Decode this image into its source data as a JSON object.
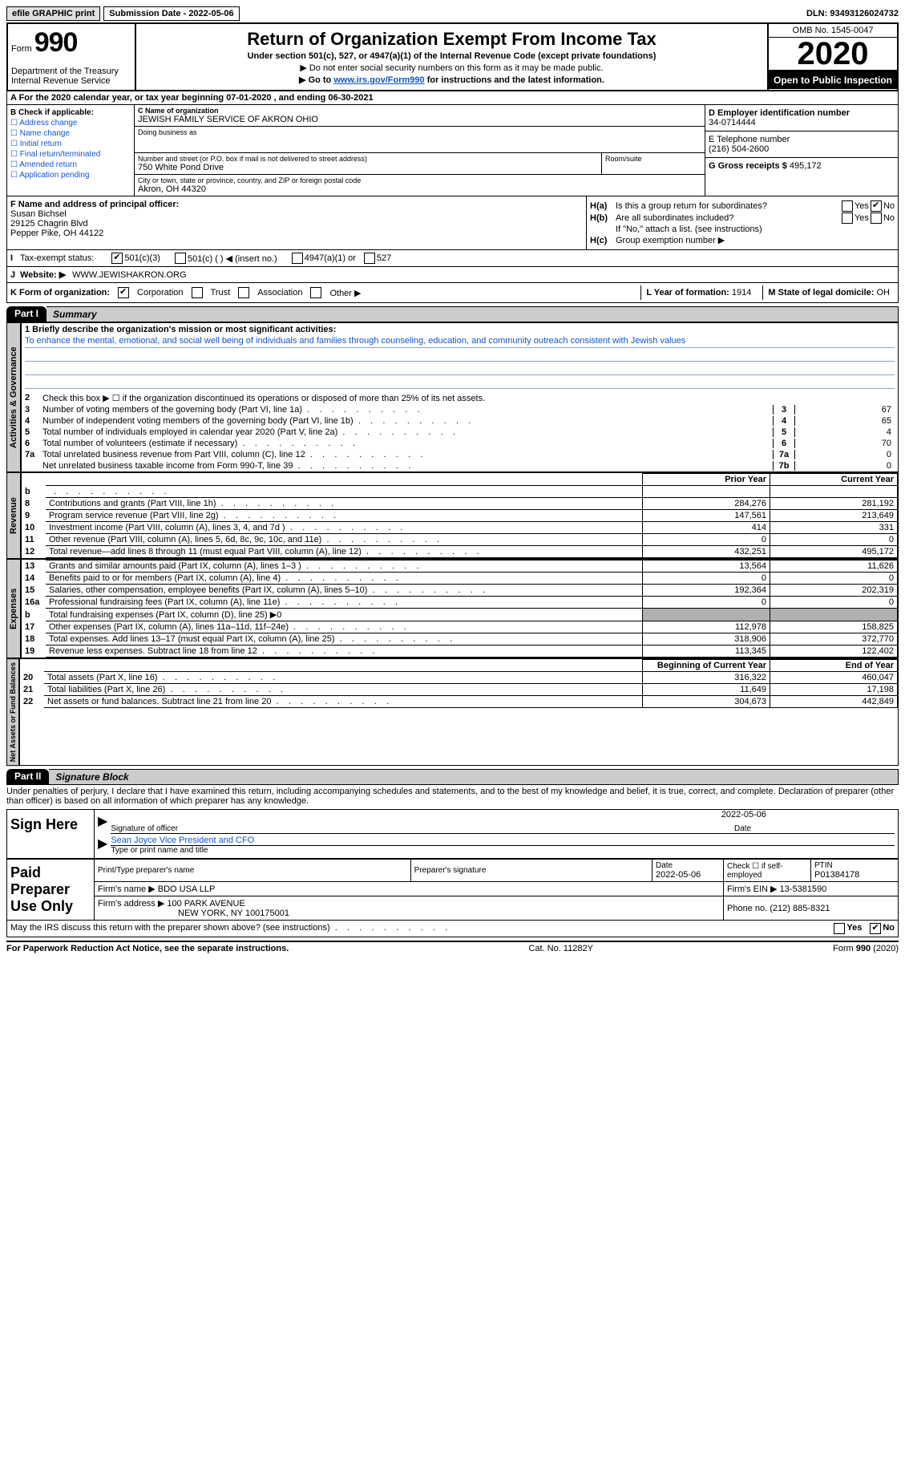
{
  "topbar": {
    "efile": "efile GRAPHIC print",
    "submission": "Submission Date - 2022-05-06",
    "dln": "DLN: 93493126024732"
  },
  "header": {
    "form_word": "Form",
    "form_num": "990",
    "dept": "Department of the Treasury\nInternal Revenue Service",
    "title": "Return of Organization Exempt From Income Tax",
    "sub1": "Under section 501(c), 527, or 4947(a)(1) of the Internal Revenue Code (except private foundations)",
    "instr1": "▶ Do not enter social security numbers on this form as it may be made public.",
    "instr2_pre": "▶ Go to ",
    "instr2_link": "www.irs.gov/Form990",
    "instr2_post": " for instructions and the latest information.",
    "omb": "OMB No. 1545-0047",
    "year": "2020",
    "open": "Open to Public Inspection"
  },
  "periodA": "A For the 2020 calendar year, or tax year beginning 07-01-2020   , and ending 06-30-2021",
  "boxB": {
    "header": "B Check if applicable:",
    "opts": [
      "Address change",
      "Name change",
      "Initial return",
      "Final return/terminated",
      "Amended return",
      "Application pending"
    ]
  },
  "boxC": {
    "name_lbl": "C Name of organization",
    "name": "JEWISH FAMILY SERVICE OF AKRON OHIO",
    "dba_lbl": "Doing business as",
    "addr_lbl": "Number and street (or P.O. box if mail is not delivered to street address)",
    "addr": "750 White Pond Drive",
    "room_lbl": "Room/suite",
    "city_lbl": "City or town, state or province, country, and ZIP or foreign postal code",
    "city": "Akron, OH  44320"
  },
  "boxD": {
    "lbl": "D Employer identification number",
    "val": "34-0714444"
  },
  "boxE": {
    "lbl": "E Telephone number",
    "val": "(216) 504-2600"
  },
  "boxG": {
    "lbl": "G Gross receipts $",
    "val": "495,172"
  },
  "boxF": {
    "lbl": "F  Name and address of principal officer:",
    "name": "Susan Bichsel",
    "addr1": "29125 Chagrin Blvd",
    "addr2": "Pepper Pike, OH  44122"
  },
  "boxH": {
    "a_lbl": "Is this a group return for subordinates?",
    "b_lbl": "Are all subordinates included?",
    "note": "If \"No,\" attach a list. (see instructions)",
    "c_lbl": "Group exemption number ▶",
    "yes": "Yes",
    "no": "No"
  },
  "boxI": {
    "lbl": "Tax-exempt status:",
    "o1": "501(c)(3)",
    "o2": "501(c) (  ) ◀ (insert no.)",
    "o3": "4947(a)(1) or",
    "o4": "527"
  },
  "boxJ": {
    "lbl": "Website: ▶",
    "val": "WWW.JEWISHAKRON.ORG"
  },
  "boxK": {
    "lbl": "K Form of organization:",
    "opts": [
      "Corporation",
      "Trust",
      "Association",
      "Other ▶"
    ]
  },
  "boxL": {
    "lbl": "L Year of formation:",
    "val": "1914"
  },
  "boxM": {
    "lbl": "M State of legal domicile:",
    "val": "OH"
  },
  "part1": {
    "tab": "Part I",
    "title": "Summary"
  },
  "mission": {
    "q": "1  Briefly describe the organization's mission or most significant activities:",
    "text": "To enhance the mental, emotional, and social well being of individuals and families through counseling, education, and community outreach consistent with Jewish values"
  },
  "gov_lines": [
    {
      "n": "2",
      "t": "Check this box ▶ ☐  if the organization discontinued its operations or disposed of more than 25% of its net assets."
    },
    {
      "n": "3",
      "t": "Number of voting members of the governing body (Part VI, line 1a)",
      "box": "3",
      "v": "67"
    },
    {
      "n": "4",
      "t": "Number of independent voting members of the governing body (Part VI, line 1b)",
      "box": "4",
      "v": "65"
    },
    {
      "n": "5",
      "t": "Total number of individuals employed in calendar year 2020 (Part V, line 2a)",
      "box": "5",
      "v": "4"
    },
    {
      "n": "6",
      "t": "Total number of volunteers (estimate if necessary)",
      "box": "6",
      "v": "70"
    },
    {
      "n": "7a",
      "t": "Total unrelated business revenue from Part VIII, column (C), line 12",
      "box": "7a",
      "v": "0"
    },
    {
      "n": "",
      "t": "Net unrelated business taxable income from Form 990-T, line 39",
      "box": "7b",
      "v": "0"
    }
  ],
  "side_labels": {
    "gov": "Activities & Governance",
    "rev": "Revenue",
    "exp": "Expenses",
    "net": "Net Assets or Fund Balances"
  },
  "col_hdrs": {
    "prior": "Prior Year",
    "curr": "Current Year",
    "boy": "Beginning of Current Year",
    "eoy": "End of Year"
  },
  "rev_lines": [
    {
      "n": "b",
      "t": "",
      "p": "",
      "c": ""
    },
    {
      "n": "8",
      "t": "Contributions and grants (Part VIII, line 1h)",
      "p": "284,276",
      "c": "281,192"
    },
    {
      "n": "9",
      "t": "Program service revenue (Part VIII, line 2g)",
      "p": "147,561",
      "c": "213,649"
    },
    {
      "n": "10",
      "t": "Investment income (Part VIII, column (A), lines 3, 4, and 7d )",
      "p": "414",
      "c": "331"
    },
    {
      "n": "11",
      "t": "Other revenue (Part VIII, column (A), lines 5, 6d, 8c, 9c, 10c, and 11e)",
      "p": "0",
      "c": "0"
    },
    {
      "n": "12",
      "t": "Total revenue—add lines 8 through 11 (must equal Part VIII, column (A), line 12)",
      "p": "432,251",
      "c": "495,172"
    }
  ],
  "exp_lines": [
    {
      "n": "13",
      "t": "Grants and similar amounts paid (Part IX, column (A), lines 1–3 )",
      "p": "13,564",
      "c": "11,626"
    },
    {
      "n": "14",
      "t": "Benefits paid to or for members (Part IX, column (A), line 4)",
      "p": "0",
      "c": "0"
    },
    {
      "n": "15",
      "t": "Salaries, other compensation, employee benefits (Part IX, column (A), lines 5–10)",
      "p": "192,364",
      "c": "202,319"
    },
    {
      "n": "16a",
      "t": "Professional fundraising fees (Part IX, column (A), line 11e)",
      "p": "0",
      "c": "0"
    },
    {
      "n": "b",
      "t": "Total fundraising expenses (Part IX, column (D), line 25) ▶0",
      "shaded": true
    },
    {
      "n": "17",
      "t": "Other expenses (Part IX, column (A), lines 11a–11d, 11f–24e)",
      "p": "112,978",
      "c": "158,825"
    },
    {
      "n": "18",
      "t": "Total expenses. Add lines 13–17 (must equal Part IX, column (A), line 25)",
      "p": "318,906",
      "c": "372,770"
    },
    {
      "n": "19",
      "t": "Revenue less expenses. Subtract line 18 from line 12",
      "p": "113,345",
      "c": "122,402"
    }
  ],
  "net_lines": [
    {
      "n": "20",
      "t": "Total assets (Part X, line 16)",
      "p": "316,322",
      "c": "460,047"
    },
    {
      "n": "21",
      "t": "Total liabilities (Part X, line 26)",
      "p": "11,649",
      "c": "17,198"
    },
    {
      "n": "22",
      "t": "Net assets or fund balances. Subtract line 21 from line 20",
      "p": "304,673",
      "c": "442,849"
    }
  ],
  "part2": {
    "tab": "Part II",
    "title": "Signature Block"
  },
  "penalties": "Under penalties of perjury, I declare that I have examined this return, including accompanying schedules and statements, and to the best of my knowledge and belief, it is true, correct, and complete. Declaration of preparer (other than officer) is based on all information of which preparer has any knowledge.",
  "sign": {
    "here": "Sign Here",
    "sig_lbl": "Signature of officer",
    "date_lbl": "Date",
    "date": "2022-05-06",
    "name": "Sean Joyce  Vice President and CFO",
    "name_lbl": "Type or print name and title"
  },
  "prep": {
    "here": "Paid Preparer Use Only",
    "h1": "Print/Type preparer's name",
    "h2": "Preparer's signature",
    "h3": "Date",
    "date": "2022-05-06",
    "h4": "Check ☐ if self-employed",
    "h5": "PTIN",
    "ptin": "P01384178",
    "firm_lbl": "Firm's name   ▶",
    "firm": "BDO USA LLP",
    "ein_lbl": "Firm's EIN ▶",
    "ein": "13-5381590",
    "addr_lbl": "Firm's address ▶",
    "addr1": "100 PARK AVENUE",
    "addr2": "NEW YORK, NY  100175001",
    "phone_lbl": "Phone no.",
    "phone": "(212) 885-8321"
  },
  "discuss": "May the IRS discuss this return with the preparer shown above? (see instructions)",
  "footer": {
    "left": "For Paperwork Reduction Act Notice, see the separate instructions.",
    "mid": "Cat. No. 11282Y",
    "right": "Form 990 (2020)"
  }
}
